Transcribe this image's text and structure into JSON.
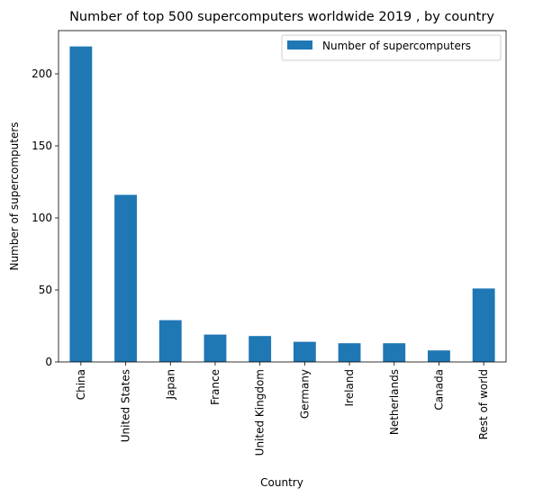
{
  "chart_data": {
    "type": "bar",
    "title": "Number of top 500 supercomputers worldwide 2019 , by country",
    "xlabel": "Country",
    "ylabel": "Number of supercomputers",
    "categories": [
      "China",
      "United States",
      "Japan",
      "France",
      "United Kingdom",
      "Germany",
      "Ireland",
      "Netherlands",
      "Canada",
      "Rest of world"
    ],
    "series": [
      {
        "name": "Number of supercomputers",
        "values": [
          219,
          116,
          29,
          19,
          18,
          14,
          13,
          13,
          8,
          51
        ],
        "color": "#1f77b4"
      }
    ],
    "yticks": [
      0,
      50,
      100,
      150,
      200
    ],
    "ylim": [
      0,
      230
    ],
    "grid": false,
    "legend": "top-right"
  }
}
